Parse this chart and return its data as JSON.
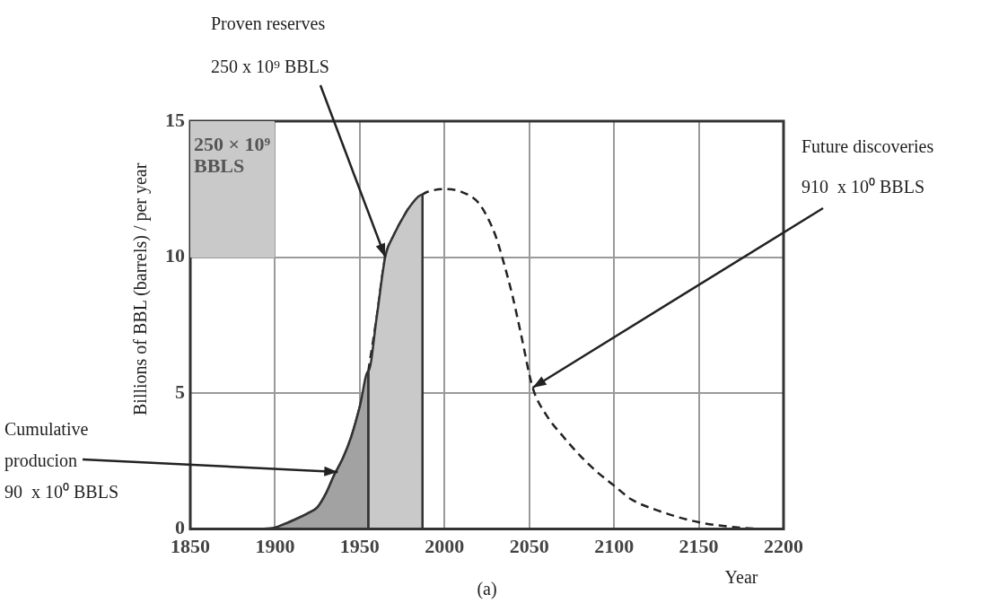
{
  "chart_data": {
    "type": "line",
    "xlabel": "Year",
    "ylabel": "Billions of BBL (barrels) / per year",
    "xlim": [
      1850,
      2200
    ],
    "xticks": [
      1850,
      1900,
      1950,
      2000,
      2050,
      2100,
      2150,
      2200
    ],
    "ylim": [
      0,
      15
    ],
    "yticks": [
      0,
      5,
      10,
      15
    ],
    "grid": true,
    "legend": false,
    "marker": "none",
    "series": [
      {
        "type": "area",
        "color": "#a2a2a2",
        "x": [
          1900,
          1910,
          1920,
          1925,
          1930,
          1935,
          1940,
          1945,
          1950,
          1955,
          1955
        ],
        "values": [
          0.05,
          0.3,
          0.6,
          0.8,
          1.3,
          2.0,
          2.6,
          3.4,
          4.5,
          5.8,
          0
        ]
      },
      {
        "type": "area",
        "color": "#c9c9c9",
        "x": [
          1955,
          1955,
          1960,
          1965,
          1970,
          1975,
          1980,
          1987,
          1987
        ],
        "values": [
          0,
          5.8,
          7.8,
          10,
          10.8,
          11.4,
          11.9,
          12.3,
          0
        ]
      },
      {
        "color": "#222222",
        "line_style": "solid",
        "x": [
          1890,
          1900,
          1910,
          1920,
          1925,
          1930,
          1935,
          1940,
          1945,
          1950,
          1955
        ],
        "values": [
          0,
          0.05,
          0.3,
          0.6,
          0.8,
          1.3,
          2.0,
          2.6,
          3.4,
          4.5,
          5.8
        ]
      },
      {
        "color": "#222222",
        "line_style": "dashed",
        "x": [
          1955,
          1960,
          1965,
          1970,
          1975,
          1980,
          1987,
          1990,
          2000,
          2010,
          2020,
          2025,
          2030,
          2034,
          2040,
          2045,
          2052,
          2060,
          2070,
          2080,
          2090,
          2100,
          2110,
          2125,
          2150,
          2175,
          2190
        ],
        "values": [
          5.8,
          7.8,
          10,
          10.8,
          11.4,
          11.9,
          12.3,
          12.4,
          12.5,
          12.4,
          12,
          11.5,
          10.8,
          10,
          8.6,
          7.2,
          5.2,
          4.2,
          3.4,
          2.7,
          2.1,
          1.6,
          1.1,
          0.7,
          0.25,
          0.05,
          0
        ]
      }
    ],
    "annotations": [
      "Proven reserves",
      {
        "text": "250 x 10⁹ BBLS",
        "x": 1965,
        "y": 10
      },
      "Future discoveries",
      {
        "text": "910  x 10⁰ BBLS",
        "x": 2052,
        "y": 5.2
      },
      "Cumulative",
      {
        "text": "producion",
        "x": 1937,
        "y": 2.1
      },
      "90  x 10⁰ BBLS",
      "250 × 10⁹\nBBLS",
      "(a)"
    ]
  }
}
